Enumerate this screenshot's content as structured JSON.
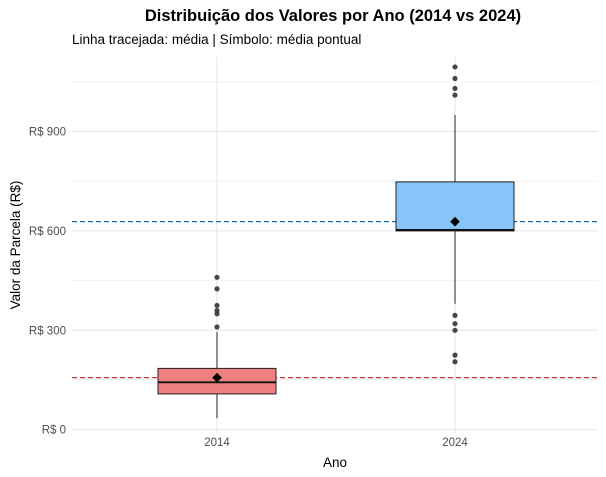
{
  "chart_data": {
    "type": "box",
    "title": "Distribuição dos Valores por Ano (2014 vs 2024)",
    "subtitle": "Linha tracejada: média | Símbolo: média pontual",
    "xlabel": "Ano",
    "ylabel": "Valor da Parcela (R$)",
    "ylim": [
      -10,
      1125
    ],
    "yticks": [
      0,
      300,
      600,
      900
    ],
    "ytick_labels": [
      "R$ 0",
      "R$ 300",
      "R$ 600",
      "R$ 900"
    ],
    "grid": true,
    "legend": "none",
    "categories": [
      "2014",
      "2024"
    ],
    "boxes": [
      {
        "category": "2014",
        "color": "#f08080",
        "mean_line_color": "#b22222",
        "whisker_low": 35,
        "q1": 108,
        "median": 143,
        "q3": 185,
        "whisker_high": 295,
        "mean": 157,
        "outliers": [
          310,
          350,
          360,
          375,
          425,
          460
        ]
      },
      {
        "category": "2024",
        "color": "#87c5f9",
        "mean_line_color": "#1f6fa8",
        "whisker_low": 380,
        "q1": 600,
        "median": 603,
        "q3": 748,
        "whisker_high": 950,
        "mean": 628,
        "outliers": [
          205,
          225,
          300,
          320,
          345,
          1010,
          1030,
          1060,
          1095
        ]
      }
    ]
  }
}
